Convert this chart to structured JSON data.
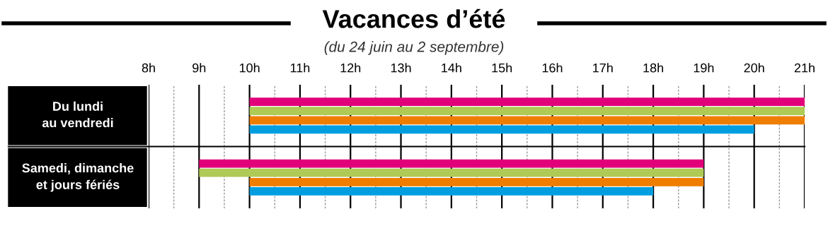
{
  "chart_data": {
    "type": "bar",
    "orientation": "horizontal",
    "title": "Vacances d’été",
    "subtitle": "(du 24 juin au 2 septembre)",
    "categories": [
      "Du lundi\nau vendredi",
      "Samedi, dimanche\net jours fériés"
    ],
    "series": [
      {
        "color": "#e2007a",
        "base": [
          10,
          9
        ],
        "values": [
          11,
          10
        ]
      },
      {
        "color": "#afca55",
        "base": [
          10,
          9
        ],
        "values": [
          11,
          10
        ]
      },
      {
        "color": "#ef7d00",
        "base": [
          10,
          10
        ],
        "values": [
          11,
          9
        ]
      },
      {
        "color": "#009ee0",
        "base": [
          10,
          10
        ],
        "values": [
          10,
          8
        ]
      }
    ],
    "xlim": [
      8,
      21
    ],
    "xticks": [
      {
        "value": 8,
        "label": "8h"
      },
      {
        "value": 8.5,
        "label": null
      },
      {
        "value": 9,
        "label": "9h"
      },
      {
        "value": 9.5,
        "label": null
      },
      {
        "value": 10,
        "label": "10h"
      },
      {
        "value": 10.5,
        "label": null
      },
      {
        "value": 11,
        "label": "11h"
      },
      {
        "value": 11.5,
        "label": null
      },
      {
        "value": 12,
        "label": "12h"
      },
      {
        "value": 12.5,
        "label": null
      },
      {
        "value": 13,
        "label": "13h"
      },
      {
        "value": 13.5,
        "label": null
      },
      {
        "value": 14,
        "label": "14h"
      },
      {
        "value": 14.5,
        "label": null
      },
      {
        "value": 15,
        "label": "15h"
      },
      {
        "value": 15.5,
        "label": null
      },
      {
        "value": 16,
        "label": "16h"
      },
      {
        "value": 16.5,
        "label": null
      },
      {
        "value": 17,
        "label": "17h"
      },
      {
        "value": 17.5,
        "label": null
      },
      {
        "value": 18,
        "label": "18h"
      },
      {
        "value": 18.5,
        "label": null
      },
      {
        "value": 19,
        "label": "19h"
      },
      {
        "value": 19.5,
        "label": null
      },
      {
        "value": 20,
        "label": "20h"
      },
      {
        "value": 20.5,
        "label": null
      },
      {
        "value": 21,
        "label": "21h"
      }
    ],
    "grid": "x"
  }
}
